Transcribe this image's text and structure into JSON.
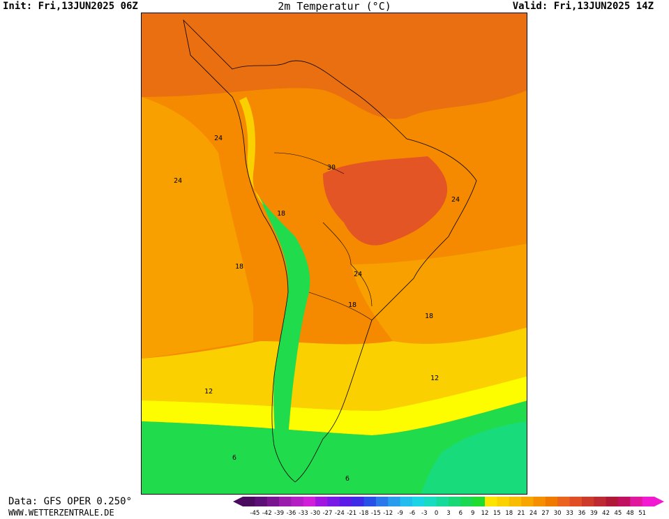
{
  "header": {
    "init": "Init: Fri,13JUN2025 06Z",
    "title": "2m Temperatur (°C)",
    "valid": "Valid: Fri,13JUN2025 14Z"
  },
  "footer": {
    "source": "Data: GFS OPER 0.250°",
    "site": "WWW.WETTERZENTRALE.DE"
  },
  "map": {
    "region": "South America",
    "contour_labels": [
      "24",
      "24",
      "30",
      "24",
      "18",
      "18",
      "24",
      "18",
      "18",
      "12",
      "12",
      "6",
      "6"
    ]
  },
  "colorbar": {
    "ticks": [
      "-45",
      "-42",
      "-39",
      "-36",
      "-33",
      "-30",
      "-27",
      "-24",
      "-21",
      "-18",
      "-15",
      "-12",
      "-9",
      "-6",
      "-3",
      "0",
      "3",
      "6",
      "9",
      "12",
      "15",
      "18",
      "21",
      "24",
      "27",
      "30",
      "33",
      "36",
      "39",
      "42",
      "45",
      "48",
      "51"
    ],
    "colors": [
      "#4a0b5e",
      "#5d0f78",
      "#7a1592",
      "#991cad",
      "#b31fc4",
      "#d01fd8",
      "#a016e0",
      "#7a18e6",
      "#5a1be8",
      "#3d2be8",
      "#2850e6",
      "#2a78ea",
      "#2a9cee",
      "#22bcef",
      "#1ad4e6",
      "#18dcc0",
      "#16d99a",
      "#17d874",
      "#1ad852",
      "#20dc2e",
      "#fbe500",
      "#fbd200",
      "#f8bd00",
      "#f7a600",
      "#f58e00",
      "#f07a00",
      "#ea6420",
      "#e04e26",
      "#cc3a2a",
      "#bc2a32",
      "#b01838",
      "#c01060",
      "#e0189c",
      "#f21ad0"
    ]
  },
  "colors": {
    "hot": "#e45526",
    "warm": "#ea6f10",
    "orange": "#f58a00",
    "lightorange": "#f7a000",
    "yellow": "#fbd000",
    "brightyellow": "#fdfd00",
    "green": "#20dc4c",
    "seagreen": "#18dc7c"
  }
}
